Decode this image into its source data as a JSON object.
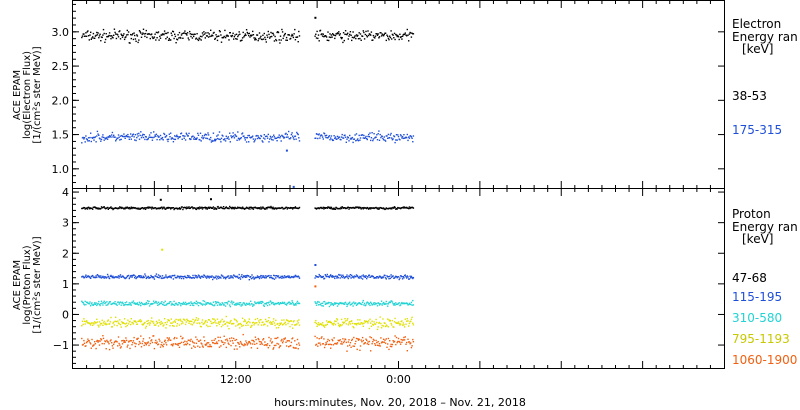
{
  "chart_data": [
    {
      "type": "scatter",
      "panel": "electron",
      "ylabel_lines": [
        "ACE EPAM",
        "log(Electron Flux)",
        "[1/(cm²s ster MeV)]"
      ],
      "ylim": [
        0.72,
        3.45
      ],
      "yticks": [
        1.0,
        1.5,
        2.0,
        2.5,
        3.0
      ],
      "ytick_labels": [
        "1.0",
        "1.5",
        "2.0",
        "2.5",
        "3.0"
      ],
      "legend_title": [
        "Electron",
        "Energy ran",
        "[keV]"
      ],
      "series": [
        {
          "name": "38-53",
          "color": "#000000",
          "mean": 2.95,
          "spread": 0.06
        },
        {
          "name": "175-315",
          "color": "#1f4fd8",
          "mean": 1.47,
          "spread": 0.05
        }
      ],
      "outliers": [
        {
          "series": 0,
          "x_hours": 17.8,
          "y": 3.22
        },
        {
          "series": 1,
          "x_hours": 16.2,
          "y": 0.75
        },
        {
          "series": 1,
          "x_hours": 15.7,
          "y": 1.28
        }
      ]
    },
    {
      "type": "scatter",
      "panel": "proton",
      "ylabel_lines": [
        "ACE EPAM",
        "log(Proton Flux)",
        "[1/(cm²s ster MeV)]"
      ],
      "ylim": [
        -1.75,
        4.1
      ],
      "yticks": [
        -1,
        0,
        1,
        2,
        3,
        4
      ],
      "ytick_labels": [
        "−1",
        "0",
        "1",
        "2",
        "3",
        "4"
      ],
      "legend_title": [
        "Proton",
        "Energy ran",
        "[keV]"
      ],
      "series": [
        {
          "name": "47-68",
          "color": "#000000",
          "mean": 3.5,
          "spread": 0.03
        },
        {
          "name": "115-195",
          "color": "#1f4fd8",
          "mean": 1.25,
          "spread": 0.05
        },
        {
          "name": "310-580",
          "color": "#22d3d3",
          "mean": 0.38,
          "spread": 0.06
        },
        {
          "name": "795-1193",
          "color": "#e0e000",
          "mean": -0.25,
          "spread": 0.12
        },
        {
          "name": "1060-1900",
          "color": "#f06010",
          "mean": -0.9,
          "spread": 0.15
        }
      ],
      "outliers": [
        {
          "series": 3,
          "x_hours": 6.5,
          "y": 2.15
        },
        {
          "series": 0,
          "x_hours": 6.4,
          "y": 3.78
        },
        {
          "series": 0,
          "x_hours": 10.1,
          "y": 3.8
        },
        {
          "series": 1,
          "x_hours": 17.8,
          "y": 1.65
        },
        {
          "series": 4,
          "x_hours": 17.8,
          "y": 0.95
        }
      ]
    }
  ],
  "x_axis": {
    "range_hours": [
      0,
      48
    ],
    "data_hours": [
      [
        0.6,
        16.7
      ],
      [
        17.8,
        25.1
      ]
    ],
    "tick_hours": [
      12,
      24
    ],
    "tick_labels": [
      "12:00",
      "0:00"
    ],
    "label": "hours:minutes, Nov. 20, 2018 – Nov. 21, 2018"
  }
}
